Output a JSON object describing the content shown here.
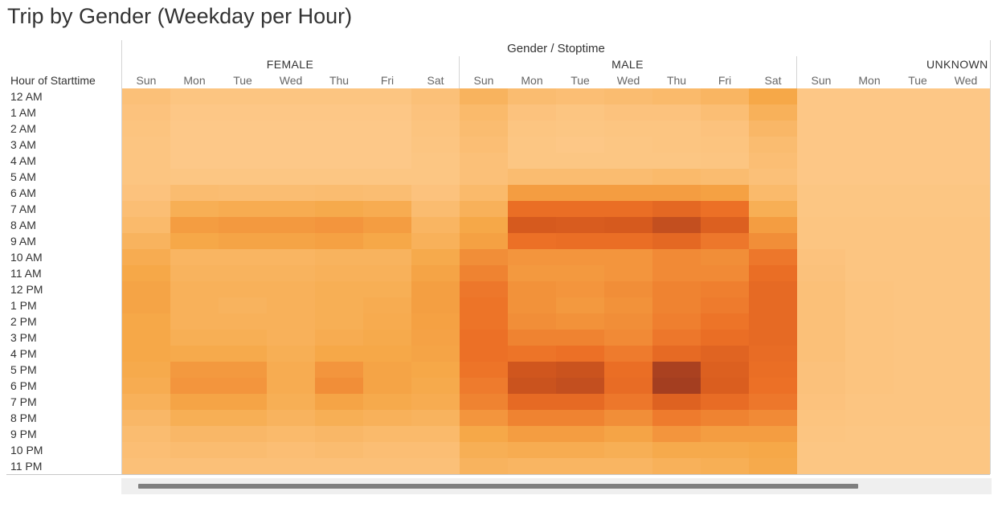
{
  "chart_data": {
    "type": "heatmap",
    "title": "Trip by Gender (Weekday per Hour)",
    "column_header": "Gender / Stoptime",
    "row_header": "Hour of Starttime",
    "genders": [
      "FEMALE",
      "MALE",
      "UNKNOWN"
    ],
    "days": [
      "Sun",
      "Mon",
      "Tue",
      "Wed",
      "Thu",
      "Fri",
      "Sat"
    ],
    "visible_unknown_days": [
      "Sun",
      "Mon",
      "Tue",
      "Wed"
    ],
    "hours": [
      "12 AM",
      "1 AM",
      "2 AM",
      "3 AM",
      "4 AM",
      "5 AM",
      "6 AM",
      "7 AM",
      "8 AM",
      "9 AM",
      "10 AM",
      "11 AM",
      "12 PM",
      "1 PM",
      "2 PM",
      "3 PM",
      "4 PM",
      "5 PM",
      "6 PM",
      "7 PM",
      "8 PM",
      "9 PM",
      "10 PM",
      "11 PM"
    ],
    "color_scale": {
      "low": "#fdc98a",
      "mid": "#f5a543",
      "high": "#e8662a",
      "max": "#9e3a20"
    },
    "value_range": [
      0,
      100
    ],
    "values_note": "relative trip intensity 0-100, estimated from color",
    "series": [
      {
        "name": "FEMALE",
        "values": [
          [
            8,
            4,
            4,
            4,
            4,
            4,
            8
          ],
          [
            6,
            2,
            2,
            2,
            2,
            2,
            6
          ],
          [
            5,
            1,
            1,
            1,
            1,
            1,
            5
          ],
          [
            4,
            1,
            1,
            1,
            1,
            1,
            4
          ],
          [
            4,
            1,
            1,
            1,
            1,
            1,
            3
          ],
          [
            4,
            3,
            3,
            3,
            3,
            3,
            3
          ],
          [
            6,
            12,
            11,
            11,
            12,
            11,
            6
          ],
          [
            10,
            24,
            26,
            26,
            28,
            26,
            12
          ],
          [
            14,
            36,
            38,
            38,
            40,
            36,
            18
          ],
          [
            20,
            30,
            32,
            32,
            34,
            30,
            22
          ],
          [
            26,
            18,
            18,
            18,
            20,
            20,
            28
          ],
          [
            30,
            20,
            20,
            20,
            22,
            22,
            32
          ],
          [
            32,
            22,
            22,
            22,
            24,
            24,
            35
          ],
          [
            32,
            22,
            20,
            22,
            24,
            26,
            35
          ],
          [
            30,
            22,
            22,
            22,
            24,
            27,
            34
          ],
          [
            30,
            24,
            24,
            22,
            26,
            28,
            33
          ],
          [
            30,
            28,
            28,
            24,
            30,
            30,
            32
          ],
          [
            28,
            38,
            38,
            26,
            40,
            32,
            30
          ],
          [
            26,
            40,
            40,
            26,
            44,
            32,
            28
          ],
          [
            22,
            32,
            32,
            24,
            32,
            28,
            26
          ],
          [
            16,
            24,
            24,
            20,
            24,
            22,
            20
          ],
          [
            12,
            16,
            16,
            14,
            16,
            14,
            14
          ],
          [
            10,
            12,
            12,
            10,
            12,
            10,
            10
          ],
          [
            8,
            8,
            8,
            8,
            8,
            8,
            8
          ]
        ]
      },
      {
        "name": "MALE",
        "values": [
          [
            20,
            12,
            10,
            12,
            14,
            18,
            30
          ],
          [
            14,
            6,
            4,
            6,
            6,
            10,
            22
          ],
          [
            12,
            4,
            3,
            4,
            4,
            6,
            16
          ],
          [
            10,
            3,
            2,
            3,
            4,
            5,
            12
          ],
          [
            8,
            3,
            3,
            3,
            3,
            4,
            10
          ],
          [
            8,
            12,
            12,
            12,
            14,
            12,
            8
          ],
          [
            14,
            36,
            36,
            36,
            36,
            34,
            14
          ],
          [
            22,
            62,
            62,
            62,
            68,
            60,
            24
          ],
          [
            30,
            82,
            80,
            82,
            88,
            76,
            36
          ],
          [
            34,
            60,
            62,
            62,
            68,
            56,
            44
          ],
          [
            44,
            40,
            40,
            40,
            46,
            44,
            56
          ],
          [
            50,
            38,
            38,
            40,
            46,
            46,
            62
          ],
          [
            56,
            42,
            40,
            44,
            50,
            52,
            66
          ],
          [
            58,
            42,
            38,
            42,
            50,
            54,
            66
          ],
          [
            58,
            44,
            42,
            44,
            52,
            58,
            66
          ],
          [
            60,
            50,
            50,
            46,
            56,
            62,
            66
          ],
          [
            60,
            58,
            60,
            54,
            66,
            72,
            64
          ],
          [
            58,
            84,
            86,
            62,
            96,
            76,
            62
          ],
          [
            54,
            86,
            88,
            64,
            98,
            78,
            60
          ],
          [
            50,
            66,
            66,
            56,
            74,
            64,
            56
          ],
          [
            40,
            50,
            50,
            44,
            54,
            50,
            46
          ],
          [
            30,
            36,
            36,
            32,
            40,
            36,
            36
          ],
          [
            24,
            26,
            26,
            24,
            28,
            28,
            30
          ],
          [
            20,
            18,
            18,
            18,
            22,
            24,
            28
          ]
        ]
      },
      {
        "name": "UNKNOWN",
        "values": [
          [
            2,
            2,
            2,
            2
          ],
          [
            2,
            2,
            2,
            2
          ],
          [
            2,
            2,
            2,
            2
          ],
          [
            2,
            2,
            2,
            2
          ],
          [
            2,
            2,
            2,
            2
          ],
          [
            2,
            2,
            2,
            2
          ],
          [
            3,
            3,
            3,
            3
          ],
          [
            3,
            3,
            3,
            3
          ],
          [
            4,
            4,
            4,
            4
          ],
          [
            4,
            4,
            4,
            4
          ],
          [
            6,
            4,
            4,
            4
          ],
          [
            7,
            4,
            4,
            4
          ],
          [
            8,
            5,
            4,
            4
          ],
          [
            8,
            5,
            4,
            4
          ],
          [
            8,
            5,
            4,
            4
          ],
          [
            8,
            5,
            4,
            4
          ],
          [
            8,
            5,
            4,
            4
          ],
          [
            7,
            5,
            4,
            4
          ],
          [
            7,
            5,
            4,
            4
          ],
          [
            6,
            4,
            4,
            4
          ],
          [
            5,
            4,
            4,
            4
          ],
          [
            4,
            3,
            3,
            3
          ],
          [
            3,
            3,
            3,
            3
          ],
          [
            3,
            3,
            3,
            3
          ]
        ]
      }
    ]
  }
}
